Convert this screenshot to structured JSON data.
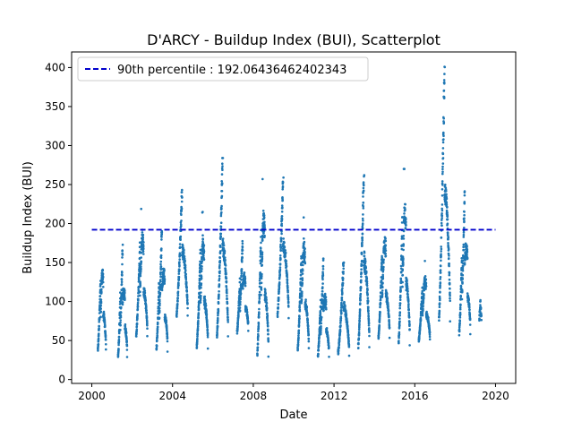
{
  "chart_data": {
    "type": "scatter",
    "title": "D'ARCY - Buildup Index (BUI), Scatterplot",
    "xlabel": "Date",
    "ylabel": "Buildup Index (BUI)",
    "xlim": [
      1999.0,
      2021.0
    ],
    "ylim": [
      -5,
      420
    ],
    "x_ticks": [
      2000,
      2004,
      2008,
      2012,
      2016,
      2020
    ],
    "x_tick_labels": [
      "2000",
      "2004",
      "2008",
      "2012",
      "2016",
      "2020"
    ],
    "y_ticks": [
      0,
      50,
      100,
      150,
      200,
      250,
      300,
      350,
      400
    ],
    "y_tick_labels": [
      "0",
      "50",
      "100",
      "150",
      "200",
      "250",
      "300",
      "350",
      "400"
    ],
    "grid": false,
    "legend_position": "upper-left",
    "legend_label": "90th percentile : 192.06436462402343",
    "reference_line": {
      "value": 192.06436462402343,
      "x_start": 2000.0,
      "x_end": 2020.0,
      "color": "#0000cc",
      "style": "dashed"
    },
    "series_color": "#1f77b4",
    "seasons": [
      {
        "start": 2000.3,
        "end": 2000.7,
        "min": 25,
        "max": 168
      },
      {
        "start": 2001.3,
        "end": 2001.75,
        "min": 15,
        "max": 173
      },
      {
        "start": 2002.2,
        "end": 2002.75,
        "min": 40,
        "max": 220
      },
      {
        "start": 2003.2,
        "end": 2003.75,
        "min": 22,
        "max": 203
      },
      {
        "start": 2004.2,
        "end": 2004.75,
        "min": 65,
        "max": 248
      },
      {
        "start": 2005.2,
        "end": 2005.75,
        "min": 25,
        "max": 215
      },
      {
        "start": 2006.2,
        "end": 2006.75,
        "min": 33,
        "max": 284
      },
      {
        "start": 2007.2,
        "end": 2007.75,
        "min": 50,
        "max": 180
      },
      {
        "start": 2008.2,
        "end": 2008.75,
        "min": 12,
        "max": 257
      },
      {
        "start": 2009.2,
        "end": 2009.75,
        "min": 65,
        "max": 259
      },
      {
        "start": 2010.2,
        "end": 2010.75,
        "min": 22,
        "max": 210
      },
      {
        "start": 2011.2,
        "end": 2011.75,
        "min": 18,
        "max": 155
      },
      {
        "start": 2012.2,
        "end": 2012.75,
        "min": 22,
        "max": 150
      },
      {
        "start": 2013.2,
        "end": 2013.75,
        "min": 20,
        "max": 262
      },
      {
        "start": 2014.2,
        "end": 2014.75,
        "min": 38,
        "max": 213
      },
      {
        "start": 2015.2,
        "end": 2015.75,
        "min": 26,
        "max": 270
      },
      {
        "start": 2016.2,
        "end": 2016.75,
        "min": 40,
        "max": 152
      },
      {
        "start": 2017.2,
        "end": 2017.75,
        "min": 45,
        "max": 402
      },
      {
        "start": 2018.2,
        "end": 2018.75,
        "min": 40,
        "max": 245
      },
      {
        "start": 2019.2,
        "end": 2019.3,
        "min": 75,
        "max": 103
      }
    ]
  }
}
